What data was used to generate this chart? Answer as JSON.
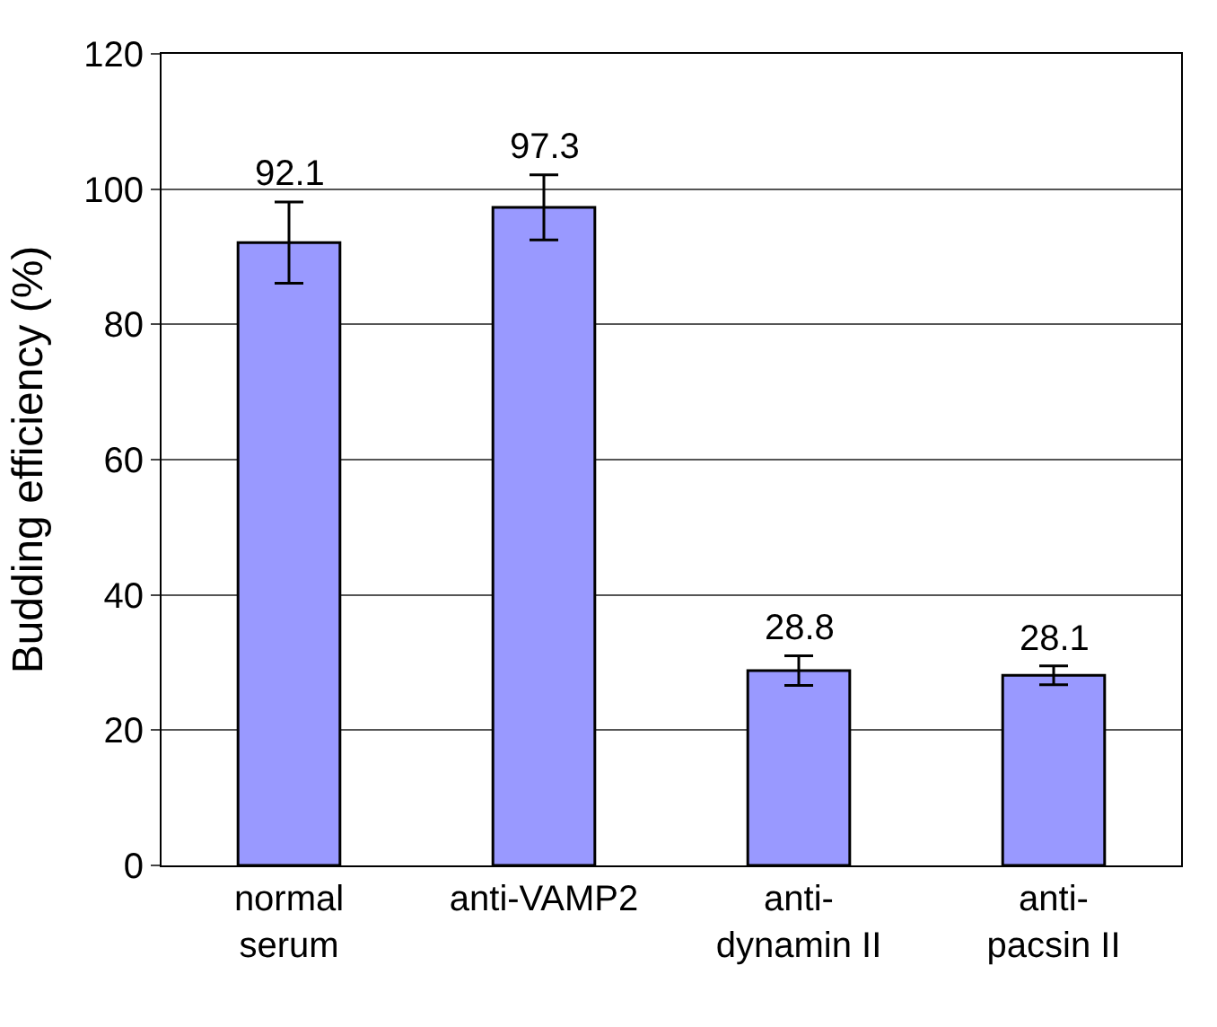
{
  "chart_data": {
    "type": "bar",
    "ylabel": "Budding efficiency (%)",
    "categories": [
      "normal serum",
      "anti-VAMP2",
      "anti-dynamin II",
      "anti-pacsin II"
    ],
    "values": [
      92.1,
      97.3,
      28.8,
      28.1
    ],
    "errors": [
      6,
      4.8,
      2.2,
      1.4
    ],
    "color": "#9999ff",
    "data_labels": true,
    "ylim": [
      0,
      120
    ],
    "yticks": [
      0,
      20,
      40,
      60,
      80,
      100,
      120
    ],
    "grid": "y"
  }
}
